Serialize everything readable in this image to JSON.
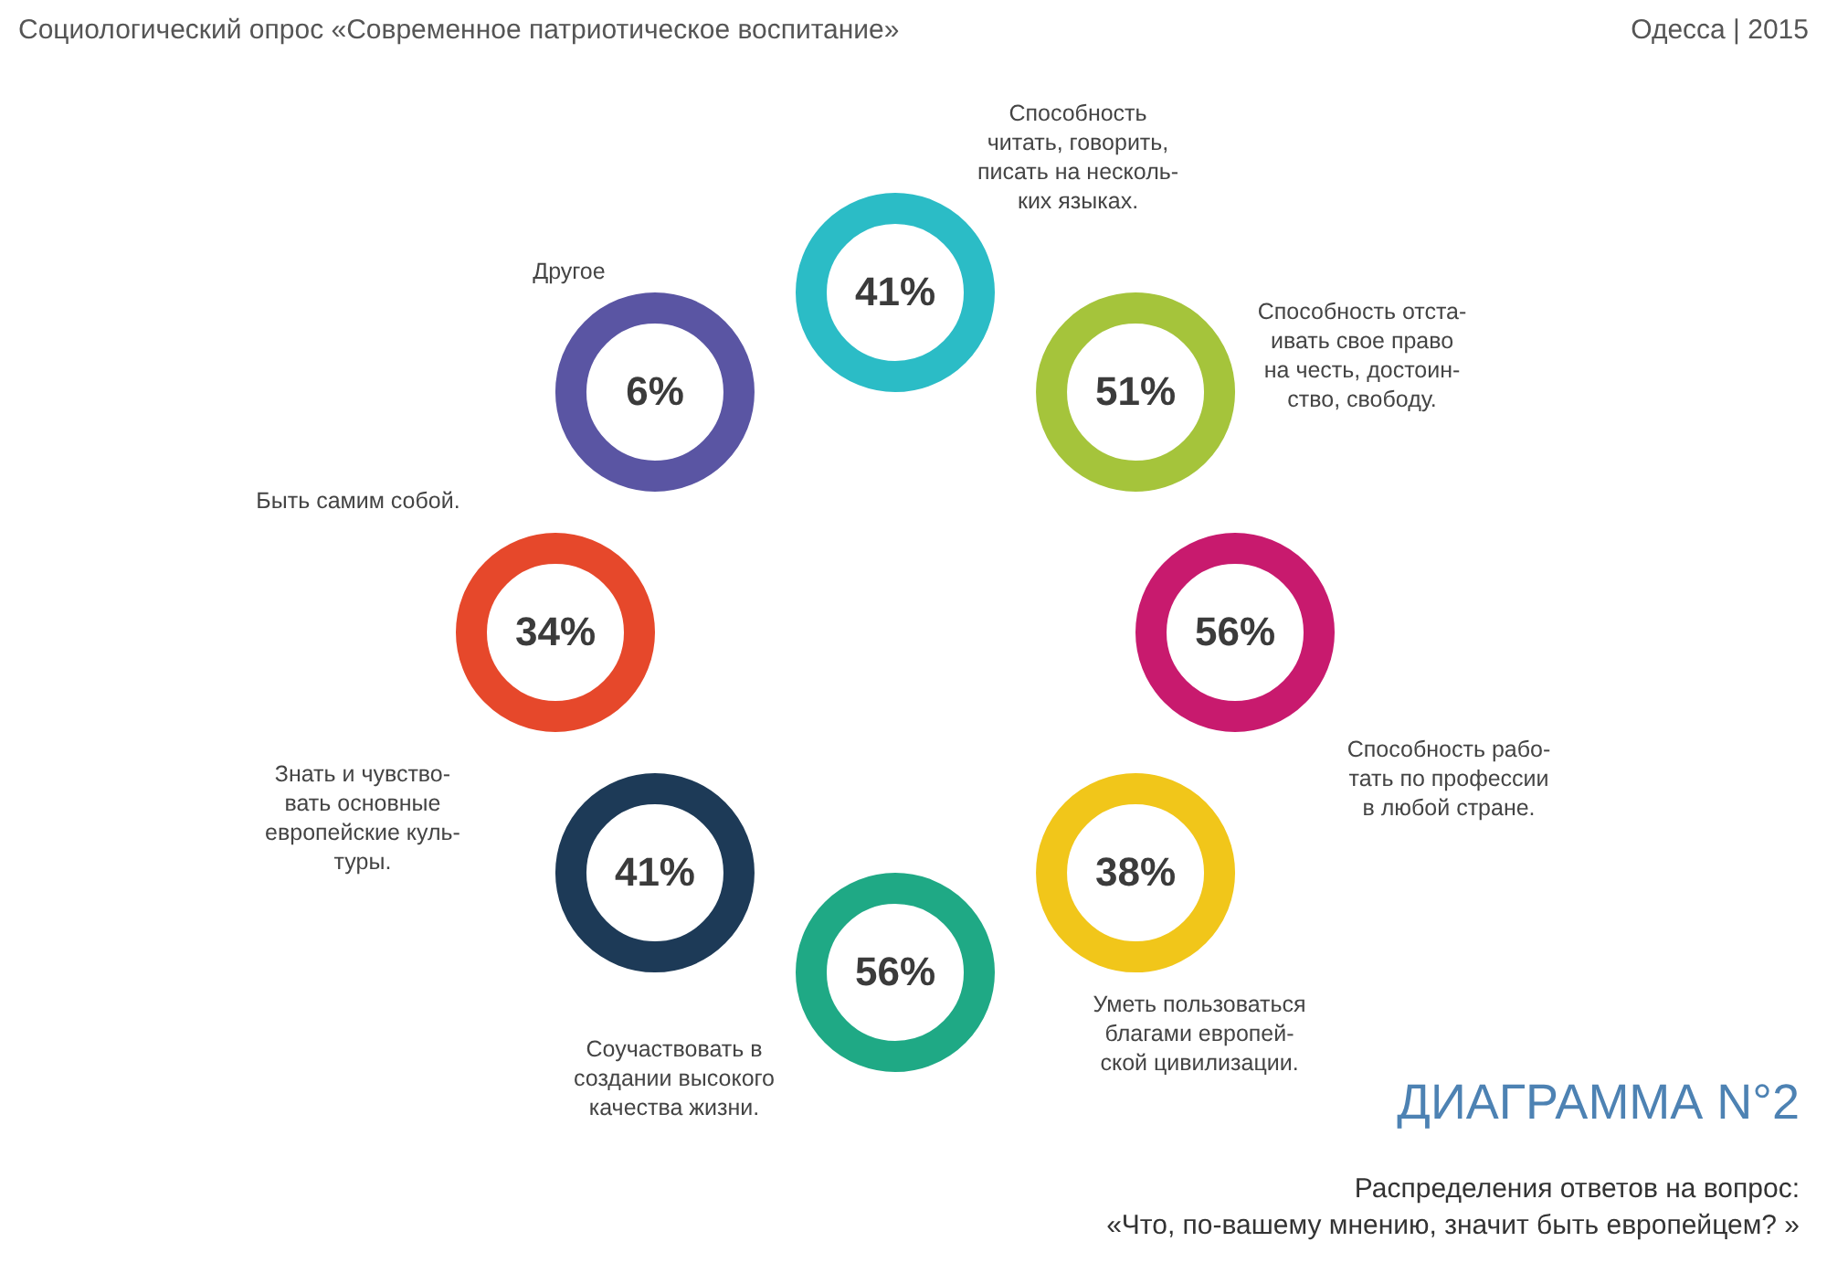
{
  "chart_data": {
    "type": "other",
    "title": "ДИАГРАММА N°2",
    "subtitle": "Распределения ответов на вопрос:\n«Что, по-вашему мнению, значит быть европейцем? »",
    "annotations": [
      "Социологический опрос «Современное патриотическое воспитание»",
      "Одесса | 2015"
    ],
    "categories": [
      "Способность\nчитать, говорить,\nписать на несколь-\nких языках.",
      "Способность отста-\nивать свое право\nна честь, достоин-\nство, свободу.",
      "Способность рабо-\nтать по профессии\nв любой стране.",
      "Уметь пользоваться\nблагами европей-\nской цивилизации.",
      "Соучаствовать в\nсоздании высокого\nкачества жизни.",
      "Знать и чувство-\nвать основные\nевропейские куль-\nтуры.",
      "Быть самим собой.",
      "Другое"
    ],
    "values": [
      41,
      51,
      56,
      38,
      56,
      41,
      34,
      6
    ],
    "value_labels": [
      "41%",
      "51%",
      "56%",
      "38%",
      "56%",
      "41%",
      "34%",
      "6%"
    ],
    "colors": [
      "#2bbcc6",
      "#a5c43b",
      "#c81a6e",
      "#f1c61a",
      "#1fa985",
      "#1d3a57",
      "#e6482b",
      "#5a55a3"
    ]
  }
}
